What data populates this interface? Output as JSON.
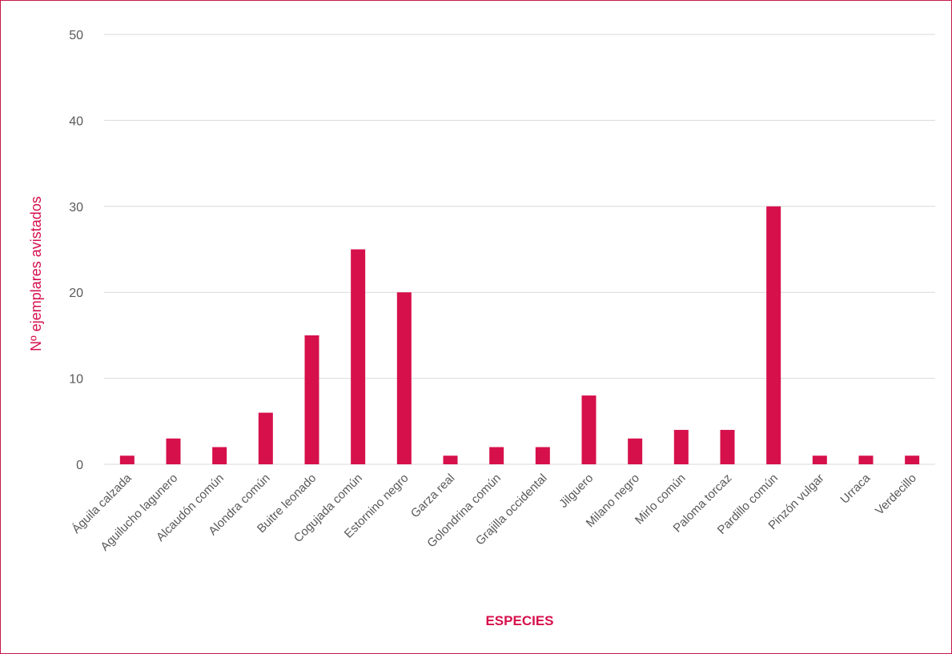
{
  "chart_data": {
    "type": "bar",
    "title": "",
    "xlabel": "ESPECIES",
    "ylabel": "Nº ejemplares avistados",
    "ylim": [
      0,
      50
    ],
    "yticks": [
      0,
      10,
      20,
      30,
      40,
      50
    ],
    "grid": true,
    "legend": "none",
    "bar_color": "#d6104b",
    "categories": [
      "Águila calzada",
      "Aguilucho lagunero",
      "Alcaudón común",
      "Alondra común",
      "Buitre leonado",
      "Cogujada común",
      "Estornino negro",
      "Garza real",
      "Golondrina común",
      "Grajilla occidental",
      "Jilguero",
      "Milano negro",
      "Mirlo común",
      "Paloma torcaz",
      "Pardillo común",
      "Pinzón vulgar",
      "Urraca",
      "Verdecillo"
    ],
    "values": [
      1,
      3,
      2,
      6,
      15,
      25,
      20,
      1,
      2,
      2,
      8,
      3,
      4,
      4,
      30,
      1,
      1,
      1
    ]
  }
}
